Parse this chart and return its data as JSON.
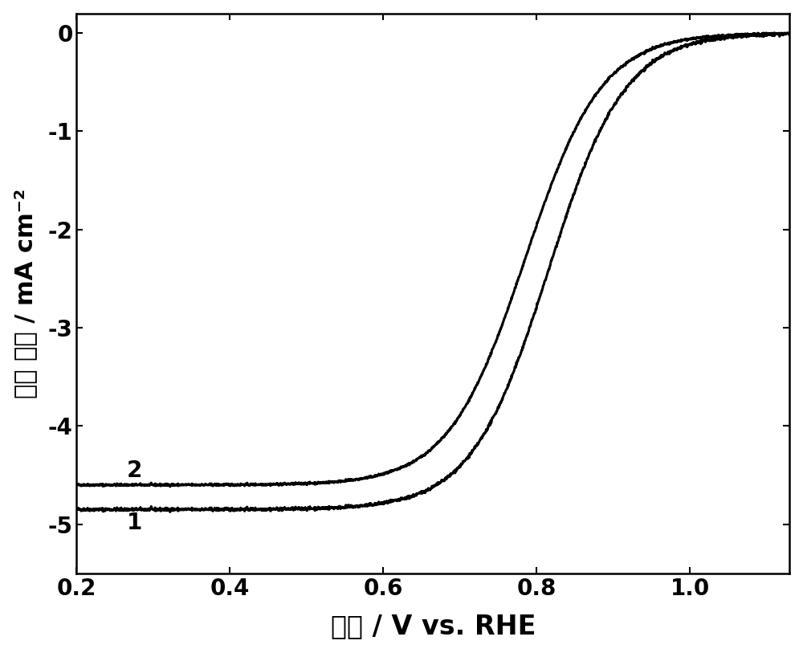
{
  "title": "",
  "xlabel": "电压 / V vs. RHE",
  "ylabel": "电流 密度 / mA cm⁻²",
  "xlim": [
    0.2,
    1.13
  ],
  "ylim": [
    -5.5,
    0.2
  ],
  "xticks": [
    0.2,
    0.4,
    0.6,
    0.8,
    1.0
  ],
  "yticks": [
    0,
    -1,
    -2,
    -3,
    -4,
    -5
  ],
  "curve1_label": "1",
  "curve2_label": "2",
  "curve1_color": "#000000",
  "curve2_color": "#000000",
  "background_color": "#ffffff",
  "linewidth": 2.2,
  "xlabel_fontsize": 24,
  "ylabel_fontsize": 22,
  "tick_fontsize": 20,
  "label_fontsize": 20,
  "curve1_x_inflection": 0.815,
  "curve1_plateau": -4.85,
  "curve1_steepness": 20.0,
  "curve2_x_inflection": 0.785,
  "curve2_plateau": -4.6,
  "curve2_steepness": 20.0
}
